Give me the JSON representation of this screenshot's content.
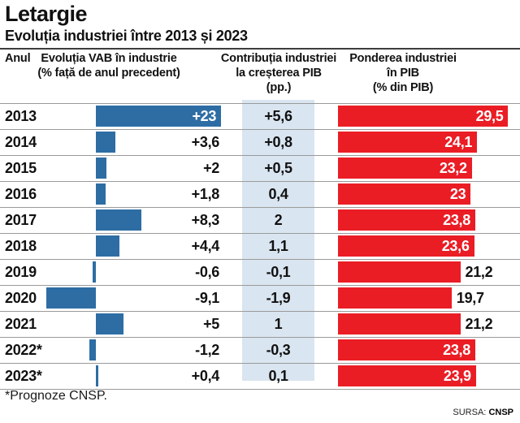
{
  "title": "Letargie",
  "subtitle": "Evoluția industriei între 2013 și 2023",
  "columns": {
    "year": "Anul",
    "vab": {
      "l1": "Evoluția VAB în industrie",
      "l2": "(% față de anul precedent)"
    },
    "contribution": {
      "l1": "Contribuția industriei",
      "l2": "la creșterea PIB",
      "l3": "(pp.)"
    },
    "share": {
      "l1": "Ponderea industriei",
      "l2": "în PIB",
      "l3": "(% din PIB)"
    }
  },
  "footnote": "*Prognoze CNSP.",
  "source": {
    "label": "SURSA:",
    "value": "CNSP"
  },
  "colors": {
    "blue_bar": "#2e6da4",
    "red_bar": "#ea1d25",
    "band": "#d9e5f0",
    "separator": "#9a9a9a",
    "rule": "#3d3d3d"
  },
  "chart_data": {
    "type": "bar",
    "orientation": "horizontal",
    "categories": [
      "2013",
      "2014",
      "2015",
      "2016",
      "2017",
      "2018",
      "2019",
      "2020",
      "2021",
      "2022*",
      "2023*"
    ],
    "series": [
      {
        "name": "Evoluția VAB în industrie (% față de anul precedent)",
        "values": [
          23,
          3.6,
          2,
          1.8,
          8.3,
          4.4,
          -0.6,
          -9.1,
          5,
          -1.2,
          0.4
        ],
        "labels": [
          "+23",
          "+3,6",
          "+2",
          "+1,8",
          "+8,3",
          "+4,4",
          "-0,6",
          "-9,1",
          "+5",
          "-1,2",
          "+0,4"
        ],
        "color": "#2e6da4"
      },
      {
        "name": "Contribuția industriei la creșterea PIB (pp.)",
        "values": [
          5.6,
          0.8,
          0.5,
          0.4,
          2,
          1.1,
          -0.1,
          -1.9,
          1,
          -0.3,
          0.1
        ],
        "labels": [
          "+5,6",
          "+0,8",
          "+0,5",
          "0,4",
          "2",
          "1,1",
          "-0,1",
          "-1,9",
          "1",
          "-0,3",
          "0,1"
        ],
        "color": "#d9e5f0"
      },
      {
        "name": "Ponderea industriei în PIB (% din PIB)",
        "values": [
          29.5,
          24.1,
          23.2,
          23,
          23.8,
          23.6,
          21.2,
          19.7,
          21.2,
          23.8,
          23.9
        ],
        "labels": [
          "29,5",
          "24,1",
          "23,2",
          "23",
          "23,8",
          "23,6",
          "21,2",
          "19,7",
          "21,2",
          "23,8",
          "23,9"
        ],
        "color": "#ea1d25"
      }
    ],
    "grid": false,
    "legend": false
  }
}
